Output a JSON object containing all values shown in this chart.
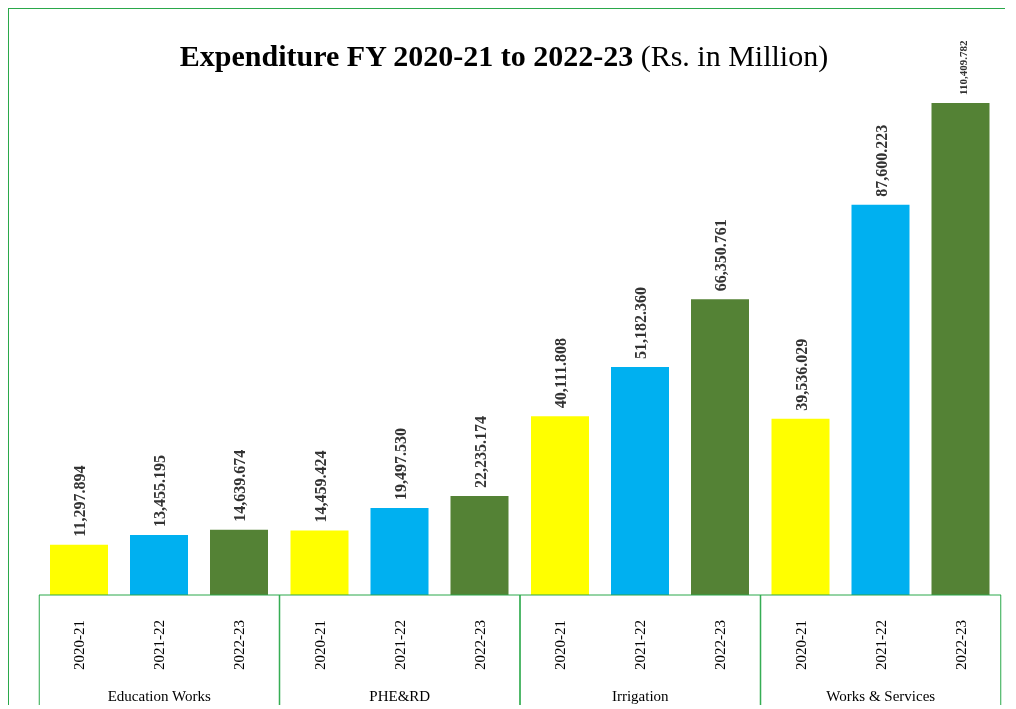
{
  "chart_data": {
    "type": "bar",
    "title": "Expenditure FY 2020-21 to 2022-23",
    "subtitle": "(Rs. in Million)",
    "categories": [
      "Education Works",
      "PHE&RD",
      "Irrigation",
      "Works & Services"
    ],
    "series": [
      {
        "name": "2020-21",
        "color": "#ffff00",
        "values": [
          11297.894,
          14459.424,
          40111.808,
          39536.029
        ],
        "value_labels": [
          "11,297.894",
          "14,459.424",
          "40,111.808",
          "39,536.029"
        ]
      },
      {
        "name": "2021-22",
        "color": "#00b0f0",
        "values": [
          13455.195,
          19497.53,
          51182.36,
          87600.223
        ],
        "value_labels": [
          "13,455.195",
          "19,497.530",
          "51,182.360",
          "87,600.223"
        ]
      },
      {
        "name": "2022-23",
        "color": "#548235",
        "values": [
          14639.674,
          22235.174,
          66350.761,
          110409.782
        ],
        "value_labels": [
          "14,639.674",
          "22,235.174",
          "66,350.761",
          "110,409.782"
        ]
      }
    ]
  }
}
